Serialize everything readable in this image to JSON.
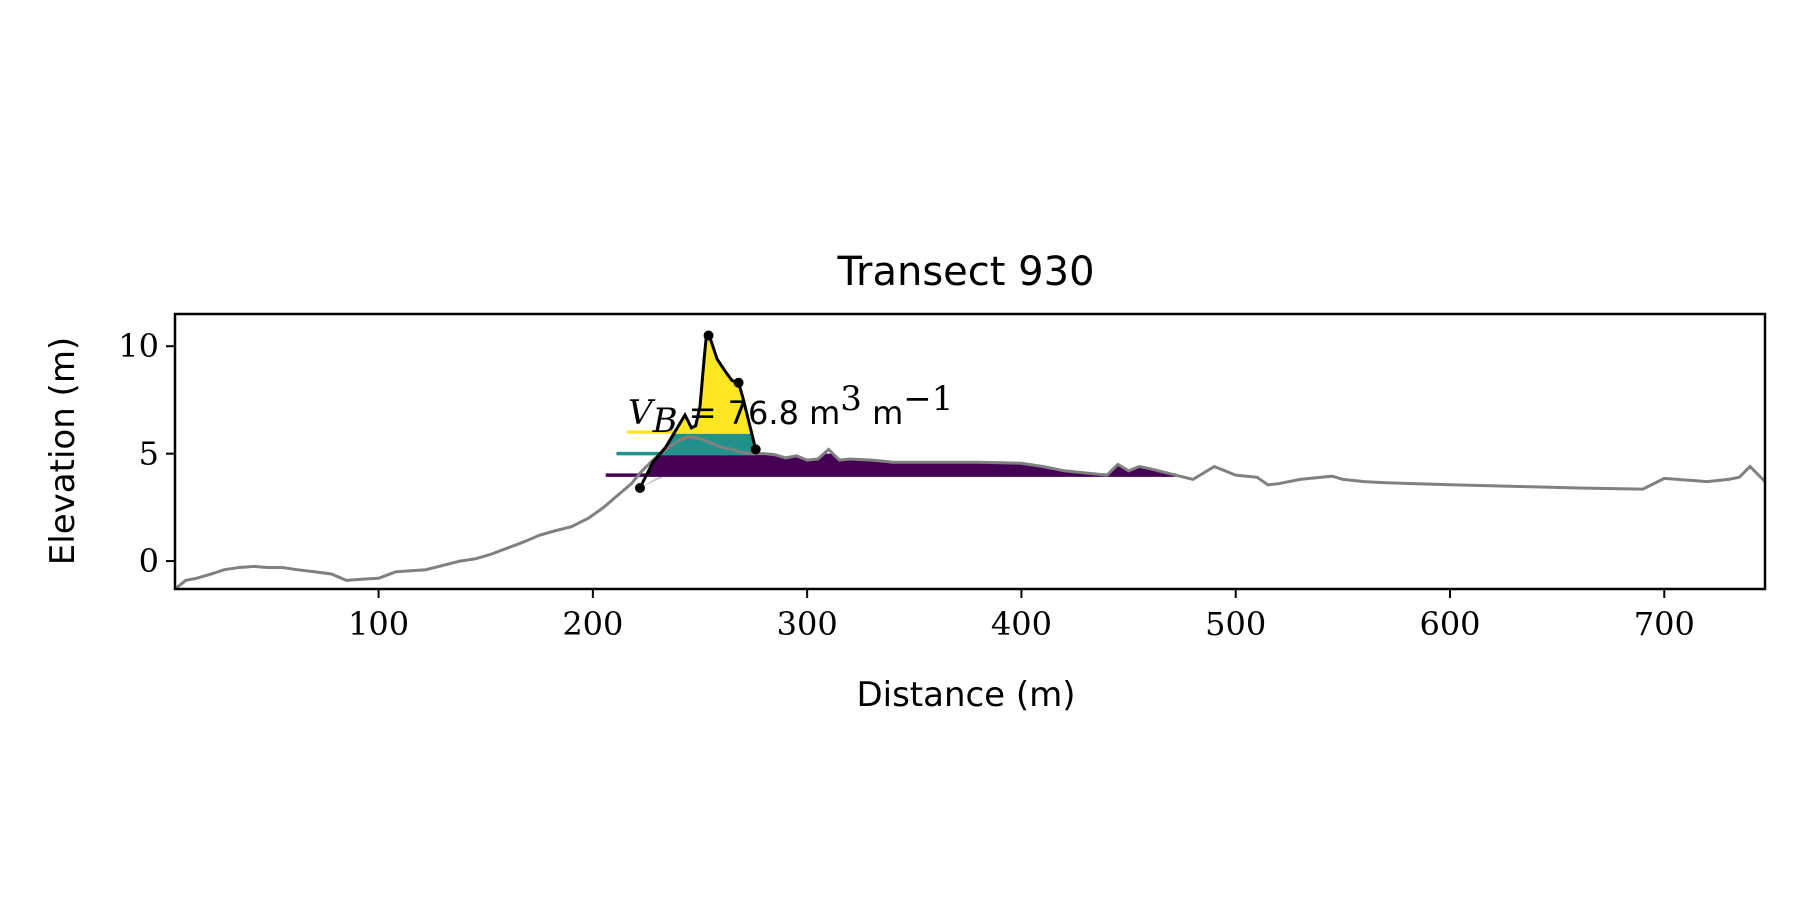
{
  "chart_data": {
    "type": "line",
    "title": "Transect 930",
    "xlabel": "Distance (m)",
    "ylabel": "Elevation (m)",
    "xlim": [
      5,
      747
    ],
    "ylim": [
      -1.3,
      11.5
    ],
    "xticks": [
      100,
      200,
      300,
      400,
      500,
      600,
      700
    ],
    "yticks": [
      0,
      5,
      10
    ],
    "grid": false,
    "annotation": {
      "symbol": "V",
      "subscript": "B",
      "equals": " = ",
      "value": "76.8",
      "unit": "m",
      "unit_sup": "3",
      "unit2": "m",
      "unit2_sup": "−1"
    },
    "colors": {
      "profile": "#808080",
      "fill_low": "#440154",
      "fill_mid": "#21918c",
      "fill_high": "#fde725",
      "gray_fill": "#c8c8c8",
      "dune": "#000000"
    },
    "profile": {
      "x": [
        5,
        10,
        15,
        22,
        28,
        35,
        42,
        48,
        55,
        62,
        70,
        78,
        85,
        92,
        100,
        108,
        115,
        122,
        130,
        138,
        145,
        152,
        160,
        168,
        175,
        182,
        190,
        198,
        205,
        212,
        218,
        222,
        228,
        234,
        240,
        245,
        250,
        255,
        260,
        265,
        270,
        275,
        280,
        285,
        290,
        295,
        300,
        305,
        310,
        315,
        320,
        330,
        340,
        350,
        360,
        380,
        400,
        410,
        420,
        430,
        440,
        445,
        450,
        455,
        460,
        470,
        480,
        485,
        490,
        500,
        510,
        515,
        520,
        530,
        540,
        545,
        550,
        560,
        570,
        600,
        640,
        660,
        690,
        700,
        720,
        730,
        735,
        740,
        747
      ],
      "y": [
        -1.3,
        -0.9,
        -0.8,
        -0.6,
        -0.4,
        -0.3,
        -0.25,
        -0.3,
        -0.3,
        -0.4,
        -0.5,
        -0.6,
        -0.9,
        -0.85,
        -0.8,
        -0.5,
        -0.45,
        -0.4,
        -0.2,
        0.0,
        0.1,
        0.3,
        0.6,
        0.9,
        1.2,
        1.4,
        1.6,
        2.0,
        2.5,
        3.1,
        3.6,
        4.1,
        4.7,
        5.2,
        5.6,
        5.8,
        5.7,
        5.5,
        5.3,
        5.2,
        5.05,
        5.0,
        5.0,
        4.95,
        4.8,
        4.9,
        4.7,
        4.75,
        5.2,
        4.7,
        4.75,
        4.7,
        4.6,
        4.6,
        4.6,
        4.6,
        4.55,
        4.4,
        4.2,
        4.1,
        4.0,
        4.5,
        4.2,
        4.4,
        4.3,
        4.05,
        3.8,
        4.1,
        4.4,
        4.0,
        3.9,
        3.55,
        3.6,
        3.8,
        3.9,
        3.95,
        3.8,
        3.7,
        3.65,
        3.55,
        3.45,
        3.4,
        3.35,
        3.85,
        3.7,
        3.8,
        3.9,
        4.4,
        3.7
      ]
    },
    "dune": {
      "x": [
        222,
        228,
        234,
        240,
        243,
        246,
        248,
        250,
        252,
        253,
        255,
        258,
        262,
        265,
        268,
        270,
        273,
        276
      ],
      "y": [
        3.4,
        4.6,
        5.3,
        6.3,
        6.8,
        6.2,
        6.3,
        7.2,
        9.5,
        10.5,
        10.3,
        9.4,
        8.8,
        8.4,
        8.3,
        7.6,
        6.4,
        5.2
      ]
    },
    "key_points": {
      "x": [
        222,
        254,
        268,
        276
      ],
      "y": [
        3.4,
        10.5,
        8.3,
        5.2
      ]
    },
    "levels": [
      {
        "y": 4.0,
        "x_start": 206,
        "x_end": 472,
        "color_key": "fill_low"
      },
      {
        "y": 5.0,
        "x_start": 211,
        "x_end": 276,
        "color_key": "fill_mid"
      },
      {
        "y": 6.0,
        "x_start": 216,
        "x_end": 275,
        "color_key": "fill_high"
      }
    ]
  }
}
